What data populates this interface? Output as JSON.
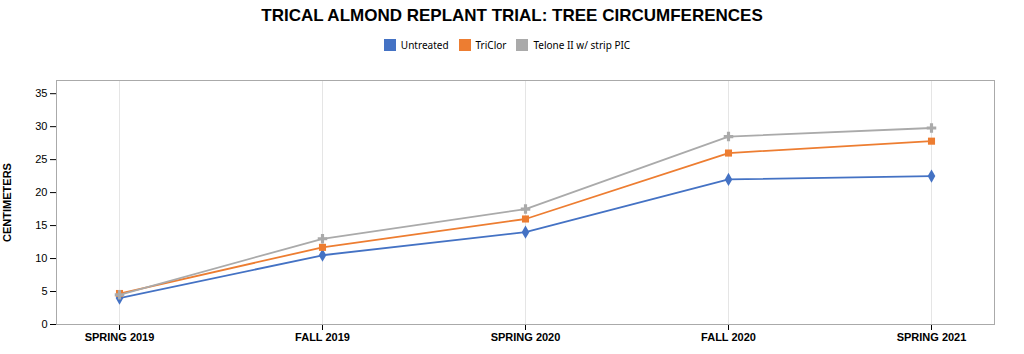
{
  "chart_data": {
    "type": "line",
    "title": "TRICAL ALMOND REPLANT TRIAL: TREE CIRCUMFERENCES",
    "y_label": "CENTIMETERS",
    "categories": [
      "SPRING 2019",
      "FALL 2019",
      "SPRING 2020",
      "FALL 2020",
      "SPRING 2021"
    ],
    "series": [
      {
        "name": "Untreated",
        "color": "#4472c4",
        "marker": "diamond",
        "values": [
          4.0,
          10.5,
          14.0,
          22.0,
          22.5
        ]
      },
      {
        "name": "TriClor",
        "color": "#ed7d31",
        "marker": "square",
        "values": [
          4.7,
          11.7,
          16.0,
          26.0,
          27.8
        ]
      },
      {
        "name": "Telone II w/ strip PIC",
        "color": "#aaaaaa",
        "marker": "plus",
        "values": [
          4.5,
          13.0,
          17.5,
          28.5,
          29.8
        ]
      }
    ],
    "ylim": [
      0,
      37
    ],
    "yticks": [
      0,
      5,
      10,
      15,
      20,
      25,
      30,
      35
    ],
    "grid": "x",
    "legend": "top"
  }
}
